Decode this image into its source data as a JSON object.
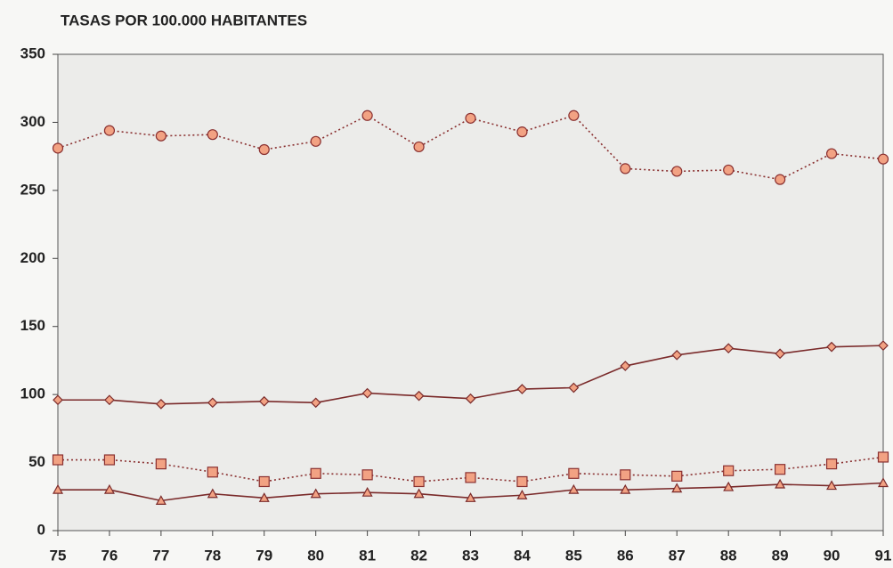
{
  "chart_data": {
    "type": "line",
    "title": "TASAS POR 100.000 HABITANTES",
    "categories": [
      "75",
      "76",
      "77",
      "78",
      "79",
      "80",
      "81",
      "82",
      "83",
      "84",
      "85",
      "86",
      "87",
      "88",
      "89",
      "90",
      "91"
    ],
    "series": [
      {
        "color": "#8a3030",
        "marker_color": "#f2a283",
        "marker": "circle",
        "dashed": true,
        "values": [
          281,
          294,
          290,
          291,
          280,
          286,
          305,
          282,
          303,
          293,
          305,
          266,
          264,
          265,
          258,
          277,
          273
        ]
      },
      {
        "color": "#7a2a2a",
        "marker_color": "#f2a283",
        "marker": "diamond",
        "dashed": false,
        "values": [
          96,
          96,
          93,
          94,
          95,
          94,
          101,
          99,
          97,
          104,
          105,
          121,
          129,
          134,
          130,
          135,
          136
        ]
      },
      {
        "color": "#8a3030",
        "marker_color": "#f2a283",
        "marker": "square",
        "dashed": true,
        "values": [
          52,
          52,
          49,
          43,
          36,
          42,
          41,
          36,
          39,
          36,
          42,
          41,
          40,
          44,
          45,
          49,
          54
        ]
      },
      {
        "color": "#7a2a2a",
        "marker_color": "#f2a283",
        "marker": "triangle",
        "dashed": false,
        "values": [
          30,
          30,
          22,
          27,
          24,
          27,
          28,
          27,
          24,
          26,
          30,
          30,
          31,
          32,
          34,
          33,
          35
        ]
      }
    ],
    "ylim": [
      0,
      350
    ],
    "yticks": [
      0,
      50,
      100,
      150,
      200,
      250,
      300,
      350
    ],
    "grid": false
  }
}
